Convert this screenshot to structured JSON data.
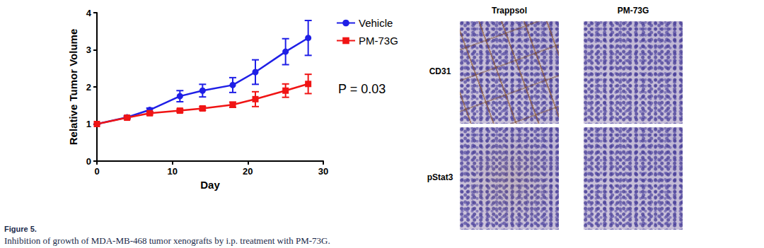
{
  "chart_data": {
    "type": "line",
    "x_label": "Day",
    "y_label": "Relative Tumor Volume",
    "x": [
      0,
      4,
      7,
      11,
      14,
      18,
      21,
      25,
      28
    ],
    "series": [
      {
        "name": "Vehicle",
        "color": "#1f1fe6",
        "marker": "circle",
        "values": [
          1,
          1.18,
          1.38,
          1.75,
          1.9,
          2.05,
          2.4,
          2.95,
          3.32
        ],
        "error": [
          0,
          0.04,
          0.05,
          0.15,
          0.17,
          0.2,
          0.33,
          0.35,
          0.47
        ]
      },
      {
        "name": "PM-73G",
        "color": "#f01414",
        "marker": "square",
        "values": [
          1,
          1.17,
          1.29,
          1.36,
          1.42,
          1.52,
          1.67,
          1.9,
          2.08
        ],
        "error": [
          0,
          0.03,
          0.04,
          0.04,
          0.05,
          0.07,
          0.2,
          0.18,
          0.26
        ]
      }
    ],
    "xlim": [
      0,
      30
    ],
    "xticks": [
      0,
      10,
      20,
      30
    ],
    "ylim": [
      0,
      4
    ],
    "yticks": [
      0,
      1,
      2,
      3,
      4
    ],
    "grid": false,
    "legend": "top-right",
    "annotations": [
      "P = 0.03"
    ]
  },
  "caption": {
    "title": "Figure 5.",
    "text": "Inhibition of growth of MDA-MB-468 tumor xenografts by i.p. treatment with PM-73G."
  },
  "panels": {
    "columns": [
      "Trappsol",
      "PM-73G"
    ],
    "rows": [
      "CD31",
      "pStat3"
    ]
  }
}
